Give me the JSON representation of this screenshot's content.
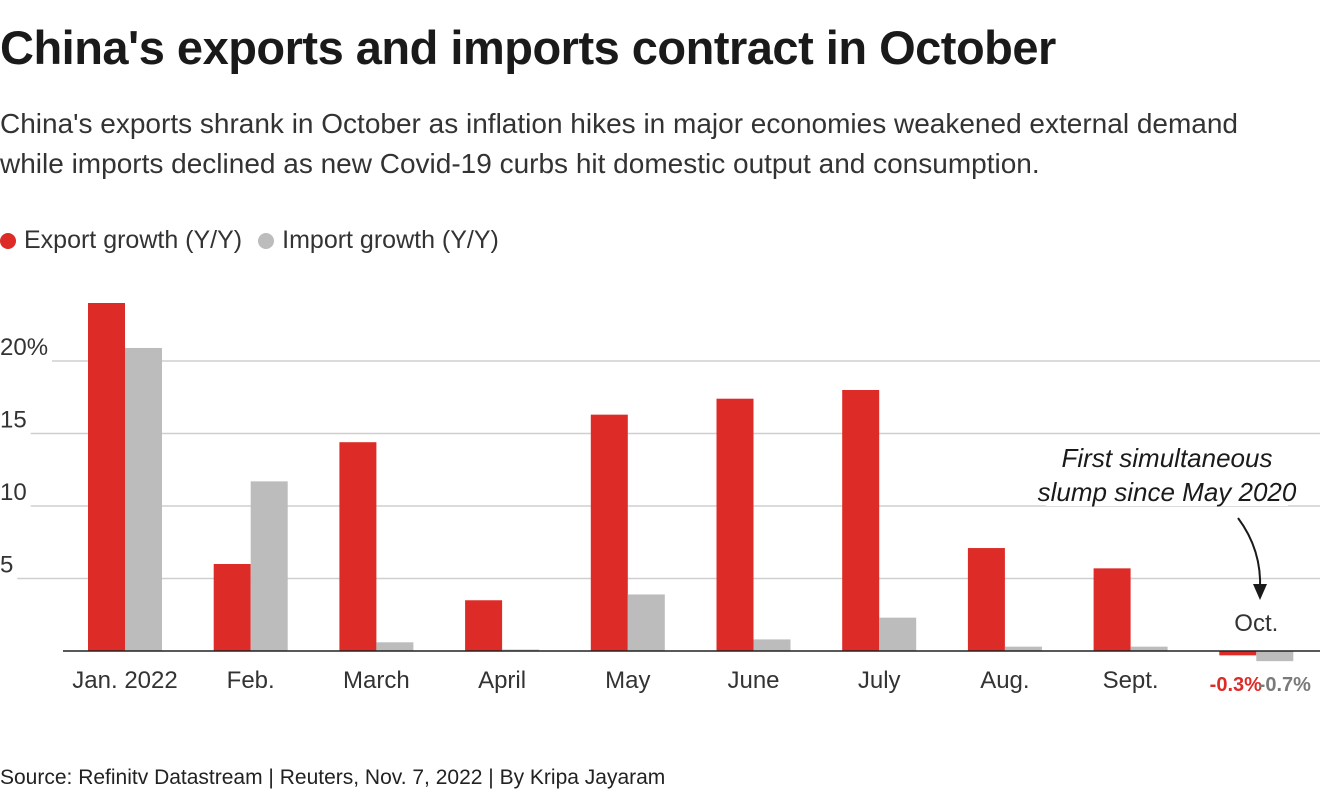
{
  "title": "China's exports and imports contract in October",
  "subtitle": "China's exports shrank in October as inflation hikes in major economies weakened external demand while imports declined as new Covid-19 curbs hit domestic output and consumption.",
  "legend": {
    "export_label": "Export growth (Y/Y)",
    "import_label": "Import growth (Y/Y)"
  },
  "source": "Source: Refinitv Datastream | Reuters, Nov. 7, 2022 | By Kripa Jayaram",
  "colors": {
    "export": "#dd2b27",
    "import": "#bcbcbc",
    "import_label": "#7a7a7a"
  },
  "chart_data": {
    "type": "bar",
    "title": "China's exports and imports contract in October",
    "xlabel": "",
    "ylabel": "",
    "ylim": [
      -1,
      25
    ],
    "yticks": [
      5,
      10,
      15,
      20
    ],
    "ytick_labels": [
      "5",
      "10",
      "15",
      "20%"
    ],
    "grid": true,
    "categories": [
      "Jan. 2022",
      "Feb.",
      "March",
      "April",
      "May",
      "June",
      "July",
      "Aug.",
      "Sept.",
      "Oct."
    ],
    "series": [
      {
        "name": "Export growth (Y/Y)",
        "values": [
          24.0,
          6.0,
          14.4,
          3.5,
          16.3,
          17.4,
          18.0,
          7.1,
          5.7,
          -0.3
        ]
      },
      {
        "name": "Import growth (Y/Y)",
        "values": [
          20.9,
          11.7,
          0.6,
          0.1,
          3.9,
          0.8,
          2.3,
          0.3,
          0.3,
          -0.7
        ]
      }
    ],
    "data_labels": {
      "export_oct": "-0.3%",
      "import_oct": "-0.7%"
    },
    "annotation": {
      "line1": "First simultaneous",
      "line2": "slump since May 2020"
    }
  }
}
